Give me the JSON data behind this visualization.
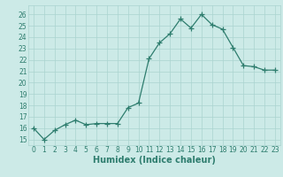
{
  "xlabel": "Humidex (Indice chaleur)",
  "x": [
    0,
    1,
    2,
    3,
    4,
    5,
    6,
    7,
    8,
    9,
    10,
    11,
    12,
    13,
    14,
    15,
    16,
    17,
    18,
    19,
    20,
    21,
    22,
    23
  ],
  "y": [
    16,
    15,
    15.8,
    16.3,
    16.7,
    16.3,
    16.4,
    16.4,
    16.4,
    17.8,
    18.2,
    22.1,
    23.5,
    24.3,
    25.6,
    24.8,
    26.0,
    25.1,
    24.7,
    23.1,
    21.5,
    21.4,
    21.1,
    21.1
  ],
  "line_color": "#2e7d6e",
  "marker": "+",
  "marker_size": 4,
  "bg_color": "#cceae7",
  "grid_color": "#aad4d0",
  "tick_color": "#2e7d6e",
  "label_color": "#2e7d6e",
  "ylim": [
    14.5,
    26.8
  ],
  "xlim": [
    -0.5,
    23.5
  ],
  "yticks": [
    15,
    16,
    17,
    18,
    19,
    20,
    21,
    22,
    23,
    24,
    25,
    26
  ],
  "xticks": [
    0,
    1,
    2,
    3,
    4,
    5,
    6,
    7,
    8,
    9,
    10,
    11,
    12,
    13,
    14,
    15,
    16,
    17,
    18,
    19,
    20,
    21,
    22,
    23
  ],
  "axis_fontsize": 6.5,
  "tick_fontsize": 5.5,
  "xlabel_fontsize": 7
}
